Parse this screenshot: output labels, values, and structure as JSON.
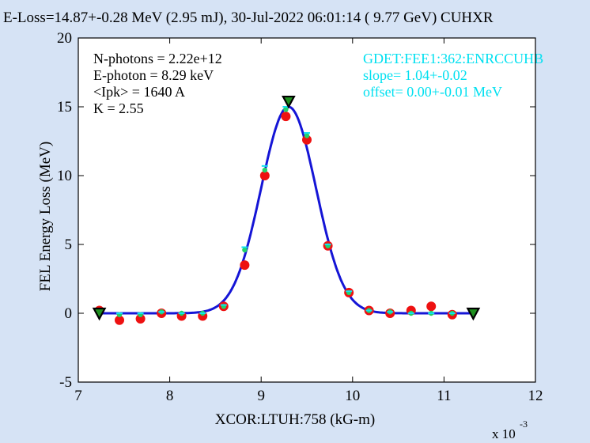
{
  "title": "E-Loss=14.87+-0.28 MeV (2.95 mJ), 30-Jul-2022 06:01:14 ( 9.77 GeV) CUHXR",
  "info_left": [
    "N-photons = 2.22e+12",
    "E-photon = 8.29 keV",
    "<Ipk> = 1640 A",
    "K = 2.55"
  ],
  "info_right": [
    "GDET:FEE1:362:ENRCCUHB",
    "slope= 1.04+-0.02",
    "offset= 0.00+-0.01 MeV"
  ],
  "colors": {
    "background": "#d6e3f5",
    "plot_bg": "#ffffff",
    "fit_line": "#1515d6",
    "red_points": "#ee1111",
    "green_points": "#22d36b",
    "cyan_points": "#11e0f0",
    "info_right_text": "#00e0f0",
    "triangle": "#1e8f1e"
  },
  "chart_data": {
    "type": "scatter",
    "title": "E-Loss=14.87+-0.28 MeV (2.95 mJ), 30-Jul-2022 06:01:14 ( 9.77 GeV) CUHXR",
    "xlabel": "XCOR:LTUH:758 (kG-m)",
    "ylabel": "FEL Energy Loss (MeV)",
    "x_scale_label": "x 10",
    "x_scale_exponent": "-3",
    "xlim": [
      7,
      12
    ],
    "ylim": [
      -5,
      20
    ],
    "x_ticks": [
      7,
      8,
      9,
      10,
      11,
      12
    ],
    "y_ticks": [
      -5,
      0,
      5,
      10,
      15,
      20
    ],
    "grid": false,
    "series": [
      {
        "kind": "red-points",
        "x": [
          7.23,
          7.45,
          7.68,
          7.91,
          8.13,
          8.36,
          8.59,
          8.82,
          9.04,
          9.27,
          9.5,
          9.73,
          9.96,
          10.18,
          10.41,
          10.64,
          10.86,
          11.09
        ],
        "y": [
          0.2,
          -0.5,
          -0.4,
          0.0,
          -0.2,
          -0.2,
          0.5,
          3.5,
          10.0,
          14.3,
          12.6,
          4.9,
          1.5,
          0.2,
          0.0,
          0.2,
          0.5,
          -0.1
        ]
      },
      {
        "kind": "green-points",
        "x": [
          7.23,
          7.45,
          7.68,
          7.91,
          8.13,
          8.36,
          8.59,
          8.82,
          9.04,
          9.27,
          9.5,
          9.73,
          9.96,
          10.18,
          10.41,
          10.64,
          10.86,
          11.09
        ],
        "y": [
          0.0,
          -0.1,
          -0.1,
          0.1,
          0.0,
          0.0,
          0.5,
          4.6,
          10.4,
          14.8,
          12.9,
          4.9,
          1.5,
          0.2,
          0.1,
          0.0,
          0.0,
          0.0
        ]
      },
      {
        "kind": "cyan-points",
        "x": [
          7.23,
          7.45,
          7.68,
          7.91,
          8.13,
          8.36,
          8.59,
          8.82,
          9.04,
          9.27,
          9.5,
          9.73,
          9.96,
          10.18,
          10.41,
          10.64,
          10.86,
          11.09
        ],
        "y": [
          0.0,
          0.0,
          0.0,
          0.1,
          0.0,
          0.0,
          0.6,
          4.8,
          10.7,
          15.0,
          13.1,
          5.0,
          1.6,
          0.2,
          0.1,
          0.0,
          0.0,
          0.0
        ]
      },
      {
        "kind": "gaussian-fit",
        "amplitude": 15.0,
        "center": 9.3,
        "sigma": 0.3,
        "offset": 0.0,
        "x_range": [
          7.23,
          11.32
        ]
      }
    ],
    "markers": [
      {
        "kind": "triangle-down",
        "x": 7.23,
        "y": 0.0
      },
      {
        "kind": "triangle-down",
        "x": 9.3,
        "y": 15.4
      },
      {
        "kind": "triangle-down",
        "x": 11.32,
        "y": 0.0
      }
    ]
  }
}
